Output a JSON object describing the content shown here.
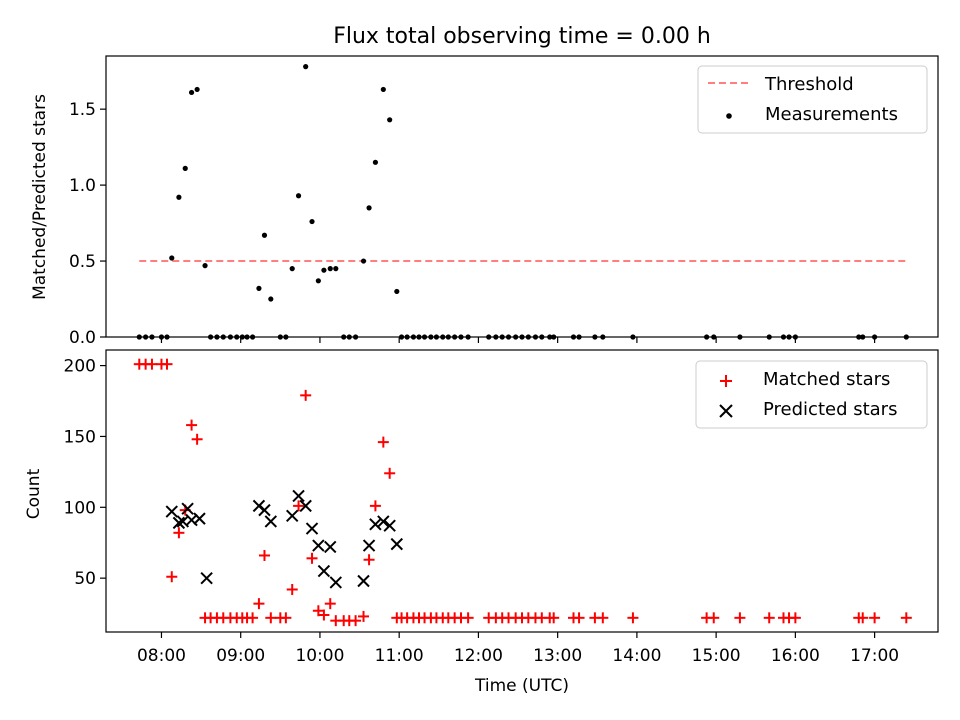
{
  "title": "Flux total observing time = 0.00 h",
  "x_tick_labels": [
    "08:00",
    "09:00",
    "10:00",
    "11:00",
    "12:00",
    "13:00",
    "14:00",
    "15:00",
    "16:00",
    "17:00"
  ],
  "colors": {
    "threshold": "#ff7f7f",
    "measurements": "#000000",
    "matched": "#ff0000",
    "predicted": "#000000"
  },
  "chart_data": [
    {
      "type": "scatter",
      "panel": "top",
      "title": "Flux total observing time = 0.00 h",
      "xlabel": "",
      "ylabel": "Matched/Predicted stars",
      "x_unit": "hours (UTC)",
      "xlim": [
        7.3,
        17.8
      ],
      "ylim": [
        0,
        1.85
      ],
      "y_ticks": [
        0.0,
        0.5,
        1.0,
        1.5
      ],
      "y_tick_labels": [
        "0.0",
        "0.5",
        "1.0",
        "1.5"
      ],
      "legend": {
        "placement": "top-right",
        "entries": [
          "Threshold",
          "Measurements"
        ]
      },
      "threshold": {
        "name": "Threshold",
        "y": 0.5,
        "x_range": [
          7.72,
          17.4
        ],
        "style": "dashed"
      },
      "series": [
        {
          "name": "Measurements",
          "marker": "dot",
          "points": [
            [
              7.72,
              0
            ],
            [
              7.8,
              0
            ],
            [
              7.88,
              0
            ],
            [
              8.0,
              0
            ],
            [
              8.07,
              0
            ],
            [
              8.13,
              0.52
            ],
            [
              8.22,
              0.92
            ],
            [
              8.3,
              1.11
            ],
            [
              8.38,
              1.61
            ],
            [
              8.45,
              1.63
            ],
            [
              8.55,
              0.47
            ],
            [
              8.62,
              0
            ],
            [
              8.7,
              0
            ],
            [
              8.78,
              0
            ],
            [
              8.87,
              0
            ],
            [
              8.95,
              0
            ],
            [
              9.02,
              0
            ],
            [
              9.08,
              0
            ],
            [
              9.15,
              0
            ],
            [
              9.23,
              0.32
            ],
            [
              9.3,
              0.67
            ],
            [
              9.38,
              0.25
            ],
            [
              9.5,
              0
            ],
            [
              9.57,
              0
            ],
            [
              9.65,
              0.45
            ],
            [
              9.73,
              0.93
            ],
            [
              9.82,
              1.78
            ],
            [
              9.9,
              0.76
            ],
            [
              9.98,
              0.37
            ],
            [
              10.05,
              0.44
            ],
            [
              10.13,
              0.45
            ],
            [
              10.2,
              0.45
            ],
            [
              10.3,
              0
            ],
            [
              10.37,
              0
            ],
            [
              10.45,
              0
            ],
            [
              10.55,
              0.5
            ],
            [
              10.62,
              0.85
            ],
            [
              10.7,
              1.15
            ],
            [
              10.8,
              1.63
            ],
            [
              10.88,
              1.43
            ],
            [
              10.97,
              0.3
            ],
            [
              11.03,
              0
            ],
            [
              11.1,
              0
            ],
            [
              11.18,
              0
            ],
            [
              11.25,
              0
            ],
            [
              11.32,
              0
            ],
            [
              11.4,
              0
            ],
            [
              11.47,
              0
            ],
            [
              11.55,
              0
            ],
            [
              11.62,
              0
            ],
            [
              11.7,
              0
            ],
            [
              11.78,
              0
            ],
            [
              11.87,
              0
            ],
            [
              12.13,
              0
            ],
            [
              12.22,
              0
            ],
            [
              12.3,
              0
            ],
            [
              12.38,
              0
            ],
            [
              12.47,
              0
            ],
            [
              12.55,
              0
            ],
            [
              12.63,
              0
            ],
            [
              12.72,
              0
            ],
            [
              12.8,
              0
            ],
            [
              12.9,
              0
            ],
            [
              12.95,
              0
            ],
            [
              13.2,
              0
            ],
            [
              13.27,
              0
            ],
            [
              13.47,
              0
            ],
            [
              13.57,
              0
            ],
            [
              13.95,
              0
            ],
            [
              14.88,
              0
            ],
            [
              14.97,
              0
            ],
            [
              15.3,
              0
            ],
            [
              15.67,
              0
            ],
            [
              15.85,
              0
            ],
            [
              15.92,
              0
            ],
            [
              16.0,
              0
            ],
            [
              16.8,
              0
            ],
            [
              16.85,
              0
            ],
            [
              17.0,
              0
            ],
            [
              17.4,
              0
            ]
          ]
        }
      ]
    },
    {
      "type": "scatter",
      "panel": "bottom",
      "xlabel": "Time (UTC)",
      "ylabel": "Count",
      "x_unit": "hours (UTC)",
      "xlim": [
        7.3,
        17.8
      ],
      "ylim": [
        12,
        211
      ],
      "y_ticks": [
        50,
        100,
        150,
        200
      ],
      "y_tick_labels": [
        "50",
        "100",
        "150",
        "200"
      ],
      "legend": {
        "placement": "top-right",
        "entries": [
          "Matched stars",
          "Predicted stars"
        ]
      },
      "series": [
        {
          "name": "Matched stars",
          "marker": "plus",
          "points": [
            [
              7.72,
              201
            ],
            [
              7.8,
              201
            ],
            [
              7.88,
              201
            ],
            [
              8.0,
              201
            ],
            [
              8.07,
              201
            ],
            [
              8.13,
              51
            ],
            [
              8.22,
              82
            ],
            [
              8.3,
              98
            ],
            [
              8.38,
              158
            ],
            [
              8.45,
              148
            ],
            [
              8.55,
              22
            ],
            [
              8.62,
              22
            ],
            [
              8.7,
              22
            ],
            [
              8.78,
              22
            ],
            [
              8.87,
              22
            ],
            [
              8.95,
              22
            ],
            [
              9.02,
              22
            ],
            [
              9.08,
              22
            ],
            [
              9.15,
              22
            ],
            [
              9.23,
              32
            ],
            [
              9.3,
              66
            ],
            [
              9.38,
              22
            ],
            [
              9.5,
              22
            ],
            [
              9.57,
              22
            ],
            [
              9.65,
              42
            ],
            [
              9.73,
              101
            ],
            [
              9.82,
              179
            ],
            [
              9.9,
              64
            ],
            [
              9.98,
              27
            ],
            [
              10.05,
              24
            ],
            [
              10.13,
              32
            ],
            [
              10.2,
              20
            ],
            [
              10.3,
              20
            ],
            [
              10.37,
              20
            ],
            [
              10.45,
              20
            ],
            [
              10.55,
              23
            ],
            [
              10.62,
              63
            ],
            [
              10.7,
              101
            ],
            [
              10.8,
              146
            ],
            [
              10.88,
              124
            ],
            [
              10.97,
              22
            ],
            [
              11.03,
              22
            ],
            [
              11.1,
              22
            ],
            [
              11.18,
              22
            ],
            [
              11.25,
              22
            ],
            [
              11.32,
              22
            ],
            [
              11.4,
              22
            ],
            [
              11.47,
              22
            ],
            [
              11.55,
              22
            ],
            [
              11.62,
              22
            ],
            [
              11.7,
              22
            ],
            [
              11.78,
              22
            ],
            [
              11.87,
              22
            ],
            [
              12.13,
              22
            ],
            [
              12.22,
              22
            ],
            [
              12.3,
              22
            ],
            [
              12.38,
              22
            ],
            [
              12.47,
              22
            ],
            [
              12.55,
              22
            ],
            [
              12.63,
              22
            ],
            [
              12.72,
              22
            ],
            [
              12.8,
              22
            ],
            [
              12.9,
              22
            ],
            [
              12.95,
              22
            ],
            [
              13.2,
              22
            ],
            [
              13.27,
              22
            ],
            [
              13.47,
              22
            ],
            [
              13.57,
              22
            ],
            [
              13.95,
              22
            ],
            [
              14.88,
              22
            ],
            [
              14.97,
              22
            ],
            [
              15.3,
              22
            ],
            [
              15.67,
              22
            ],
            [
              15.85,
              22
            ],
            [
              15.92,
              22
            ],
            [
              16.0,
              22
            ],
            [
              16.8,
              22
            ],
            [
              16.85,
              22
            ],
            [
              17.0,
              22
            ],
            [
              17.4,
              22
            ]
          ]
        },
        {
          "name": "Predicted stars",
          "marker": "x",
          "points": [
            [
              8.13,
              97
            ],
            [
              8.22,
              89
            ],
            [
              8.27,
              90
            ],
            [
              8.33,
              99
            ],
            [
              8.38,
              91
            ],
            [
              8.48,
              92
            ],
            [
              8.57,
              50
            ],
            [
              9.23,
              101
            ],
            [
              9.3,
              98
            ],
            [
              9.38,
              90
            ],
            [
              9.65,
              94
            ],
            [
              9.73,
              108
            ],
            [
              9.82,
              101
            ],
            [
              9.9,
              85
            ],
            [
              9.98,
              73
            ],
            [
              10.05,
              55
            ],
            [
              10.13,
              72
            ],
            [
              10.2,
              47
            ],
            [
              10.55,
              48
            ],
            [
              10.62,
              73
            ],
            [
              10.7,
              88
            ],
            [
              10.8,
              90
            ],
            [
              10.88,
              87
            ],
            [
              10.97,
              74
            ]
          ]
        }
      ]
    }
  ]
}
